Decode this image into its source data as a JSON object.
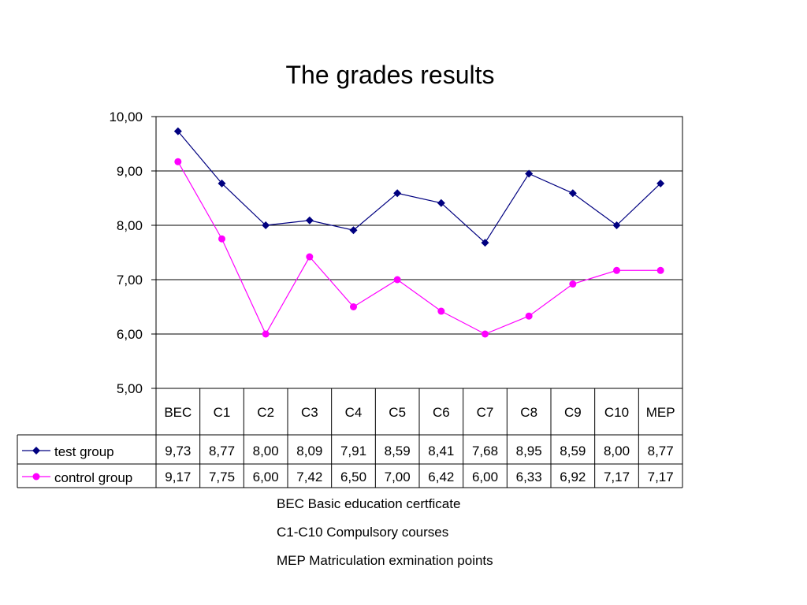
{
  "chart_data": {
    "type": "line",
    "title": "The grades results",
    "categories": [
      "BEC",
      "C1",
      "C2",
      "C3",
      "C4",
      "C5",
      "C6",
      "C7",
      "C8",
      "C9",
      "C10",
      "MEP"
    ],
    "ylim": [
      5,
      10
    ],
    "yticks": [
      "5,00",
      "6,00",
      "7,00",
      "8,00",
      "9,00",
      "10,00"
    ],
    "grid": true,
    "legend": "data-table",
    "series": [
      {
        "name": "test group",
        "color": "#000080",
        "marker": "diamond",
        "values": [
          9.73,
          8.77,
          8.0,
          8.09,
          7.91,
          8.59,
          8.41,
          7.68,
          8.95,
          8.59,
          8.0,
          8.77
        ],
        "labels": [
          "9,73",
          "8,77",
          "8,00",
          "8,09",
          "7,91",
          "8,59",
          "8,41",
          "7,68",
          "8,95",
          "8,59",
          "8,00",
          "8,77"
        ]
      },
      {
        "name": "control group",
        "color": "#ff00ff",
        "marker": "circle",
        "values": [
          9.17,
          7.75,
          6.0,
          7.42,
          6.5,
          7.0,
          6.42,
          6.0,
          6.33,
          6.92,
          7.17,
          7.17
        ],
        "labels": [
          "9,17",
          "7,75",
          "6,00",
          "7,42",
          "6,50",
          "7,00",
          "6,42",
          "6,00",
          "6,33",
          "6,92",
          "7,17",
          "7,17"
        ]
      }
    ]
  },
  "notes": [
    "BEC Basic education certficate",
    "C1-C10 Compulsory courses",
    "MEP Matriculation exmination points"
  ]
}
